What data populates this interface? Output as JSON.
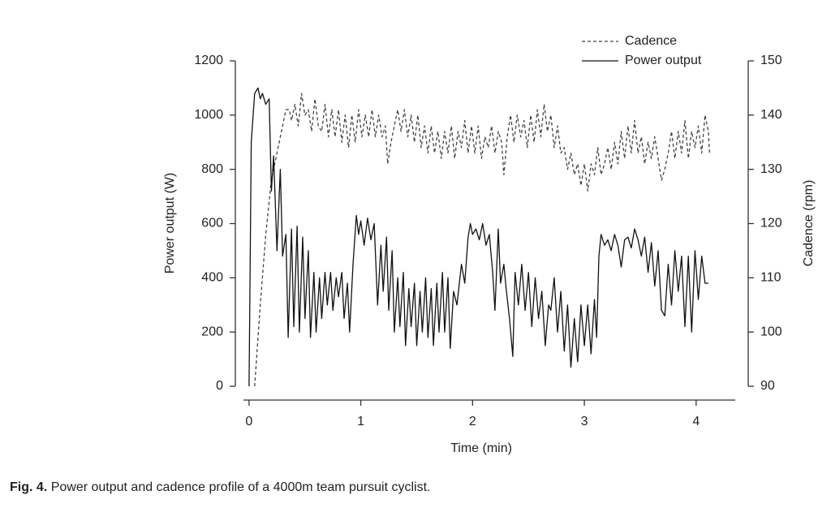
{
  "chart_data": {
    "type": "line",
    "xlabel": "Time (min)",
    "ylabel": "Power output (W)",
    "y2label": "Cadence (rpm)",
    "caption_label": "Fig. 4.",
    "caption": "Power output and cadence profile of a 4000m team pursuit cyclist.",
    "xlim": [
      -0.05,
      4.35
    ],
    "xticks": [
      0,
      1,
      2,
      3,
      4
    ],
    "ylim": [
      0,
      1200
    ],
    "yticks": [
      0,
      200,
      400,
      600,
      800,
      1000,
      1200
    ],
    "y2lim": [
      90,
      150
    ],
    "y2ticks": [
      90,
      100,
      110,
      120,
      130,
      140,
      150
    ],
    "legend": "top-right",
    "series": [
      {
        "name": "Cadence",
        "color": "#444",
        "dashed": true,
        "axis": "y2",
        "x": [
          0.05,
          0.1,
          0.15,
          0.2,
          0.25,
          0.28,
          0.3,
          0.33,
          0.36,
          0.38,
          0.41,
          0.44,
          0.47,
          0.5,
          0.53,
          0.56,
          0.59,
          0.62,
          0.65,
          0.68,
          0.71,
          0.74,
          0.77,
          0.8,
          0.83,
          0.86,
          0.89,
          0.92,
          0.95,
          0.98,
          1.01,
          1.04,
          1.07,
          1.1,
          1.13,
          1.16,
          1.19,
          1.22,
          1.24,
          1.27,
          1.3,
          1.33,
          1.36,
          1.39,
          1.42,
          1.45,
          1.48,
          1.51,
          1.54,
          1.57,
          1.6,
          1.63,
          1.66,
          1.69,
          1.72,
          1.75,
          1.78,
          1.81,
          1.84,
          1.87,
          1.9,
          1.93,
          1.96,
          1.99,
          2.02,
          2.05,
          2.08,
          2.11,
          2.14,
          2.17,
          2.2,
          2.23,
          2.26,
          2.28,
          2.31,
          2.34,
          2.37,
          2.4,
          2.43,
          2.46,
          2.49,
          2.52,
          2.55,
          2.58,
          2.61,
          2.64,
          2.67,
          2.7,
          2.73,
          2.76,
          2.79,
          2.82,
          2.85,
          2.88,
          2.91,
          2.94,
          2.97,
          3.0,
          3.03,
          3.06,
          3.09,
          3.12,
          3.15,
          3.18,
          3.21,
          3.24,
          3.27,
          3.3,
          3.33,
          3.36,
          3.39,
          3.42,
          3.45,
          3.48,
          3.51,
          3.54,
          3.57,
          3.6,
          3.63,
          3.66,
          3.69,
          3.72,
          3.75,
          3.78,
          3.81,
          3.84,
          3.87,
          3.9,
          3.93,
          3.96,
          3.99,
          4.02,
          4.05,
          4.08,
          4.11,
          4.12
        ],
        "values": [
          90,
          105,
          118,
          128,
          133,
          136,
          138,
          141,
          141,
          139,
          142,
          138,
          144,
          140,
          141,
          137,
          143,
          138,
          137,
          142,
          136,
          141,
          136,
          141,
          135,
          140,
          134,
          140,
          135,
          141,
          136,
          140,
          136,
          141,
          136,
          140,
          136,
          138,
          131,
          135,
          138,
          141,
          137,
          141,
          136,
          140,
          135,
          140,
          134,
          138,
          133,
          138,
          133,
          137,
          132,
          137,
          133,
          138,
          132,
          137,
          134,
          139,
          133,
          138,
          133,
          138,
          132,
          136,
          134,
          138,
          133,
          137,
          135,
          129,
          136,
          140,
          135,
          140,
          136,
          139,
          134,
          140,
          135,
          141,
          136,
          142,
          137,
          140,
          134,
          138,
          133,
          134,
          130,
          133,
          129,
          131,
          127,
          131,
          126,
          131,
          129,
          134,
          129,
          131,
          134,
          130,
          135,
          131,
          137,
          132,
          138,
          133,
          139,
          133,
          136,
          131,
          135,
          132,
          136,
          132,
          128,
          130,
          133,
          137,
          132,
          137,
          133,
          139,
          132,
          137,
          134,
          138,
          133,
          140,
          137,
          133
        ]
      },
      {
        "name": "Power output",
        "color": "#111",
        "dashed": false,
        "axis": "y",
        "x": [
          0,
          0.02,
          0.05,
          0.08,
          0.1,
          0.12,
          0.15,
          0.18,
          0.2,
          0.22,
          0.25,
          0.28,
          0.3,
          0.33,
          0.35,
          0.38,
          0.4,
          0.43,
          0.45,
          0.48,
          0.5,
          0.53,
          0.55,
          0.58,
          0.6,
          0.63,
          0.65,
          0.68,
          0.7,
          0.73,
          0.75,
          0.78,
          0.8,
          0.83,
          0.85,
          0.88,
          0.9,
          0.93,
          0.96,
          0.98,
          1.0,
          1.03,
          1.06,
          1.09,
          1.12,
          1.15,
          1.18,
          1.2,
          1.23,
          1.25,
          1.28,
          1.3,
          1.33,
          1.35,
          1.38,
          1.4,
          1.43,
          1.45,
          1.48,
          1.5,
          1.53,
          1.55,
          1.58,
          1.6,
          1.63,
          1.65,
          1.68,
          1.7,
          1.73,
          1.75,
          1.78,
          1.8,
          1.83,
          1.86,
          1.9,
          1.93,
          1.96,
          1.98,
          2.0,
          2.03,
          2.06,
          2.09,
          2.12,
          2.15,
          2.18,
          2.2,
          2.23,
          2.25,
          2.28,
          2.3,
          2.33,
          2.36,
          2.38,
          2.41,
          2.44,
          2.47,
          2.5,
          2.53,
          2.56,
          2.59,
          2.62,
          2.65,
          2.68,
          2.7,
          2.73,
          2.76,
          2.79,
          2.82,
          2.85,
          2.88,
          2.91,
          2.94,
          2.97,
          3.0,
          3.03,
          3.06,
          3.09,
          3.11,
          3.13,
          3.15,
          3.18,
          3.21,
          3.24,
          3.27,
          3.3,
          3.33,
          3.36,
          3.39,
          3.42,
          3.45,
          3.48,
          3.51,
          3.54,
          3.57,
          3.6,
          3.63,
          3.66,
          3.69,
          3.72,
          3.75,
          3.78,
          3.81,
          3.84,
          3.87,
          3.9,
          3.93,
          3.96,
          3.99,
          4.02,
          4.05,
          4.08,
          4.11
        ],
        "values": [
          0,
          900,
          1080,
          1100,
          1060,
          1080,
          1040,
          1060,
          720,
          850,
          500,
          800,
          480,
          560,
          180,
          580,
          220,
          590,
          200,
          550,
          250,
          500,
          180,
          420,
          200,
          400,
          250,
          420,
          300,
          420,
          280,
          400,
          330,
          420,
          250,
          380,
          200,
          450,
          630,
          560,
          610,
          520,
          620,
          540,
          600,
          300,
          520,
          350,
          550,
          280,
          500,
          200,
          400,
          220,
          420,
          150,
          360,
          220,
          380,
          150,
          350,
          200,
          400,
          180,
          360,
          150,
          380,
          200,
          420,
          200,
          400,
          140,
          350,
          300,
          450,
          380,
          550,
          600,
          560,
          580,
          540,
          600,
          520,
          560,
          420,
          280,
          580,
          380,
          450,
          360,
          250,
          110,
          420,
          300,
          450,
          280,
          420,
          220,
          400,
          250,
          350,
          150,
          300,
          280,
          400,
          200,
          350,
          130,
          300,
          70,
          250,
          90,
          300,
          150,
          300,
          120,
          320,
          180,
          480,
          560,
          520,
          540,
          500,
          560,
          520,
          440,
          540,
          550,
          510,
          580,
          540,
          480,
          550,
          420,
          530,
          370,
          500,
          280,
          260,
          450,
          300,
          500,
          350,
          480,
          220,
          480,
          200,
          500,
          320,
          480,
          380,
          380
        ]
      }
    ]
  }
}
